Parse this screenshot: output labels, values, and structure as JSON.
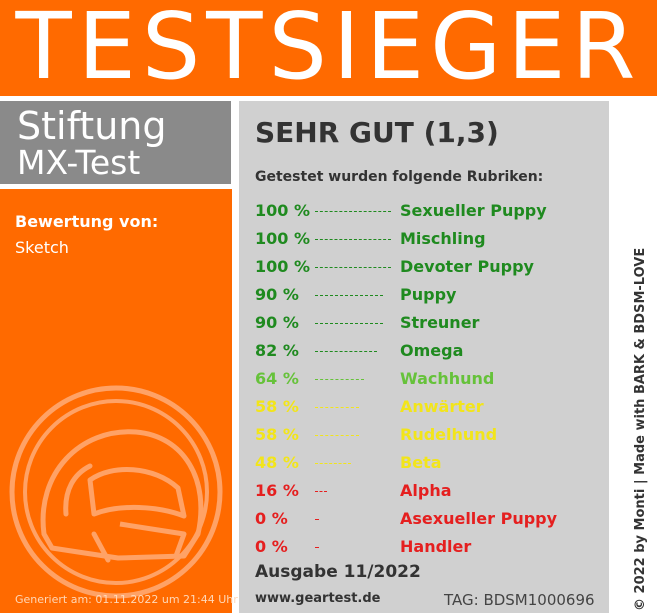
{
  "banner": {
    "title": "TESTSIEGER"
  },
  "brand": {
    "line1": "Stiftung",
    "line2": "MX-Test"
  },
  "rating": {
    "label": "Bewertung von:",
    "value": "Sketch"
  },
  "emblem": {
    "icon": "motocross-helmet-icon"
  },
  "generated": "Generiert am: 01.11.2022 um 21:44 Uhr",
  "verdict": "SEHR GUT (1,3)",
  "tested_heading": "Getestet wurden folgende Rubriken:",
  "results": [
    {
      "percent": "100 %",
      "value": 100,
      "name": "Sexueller Puppy",
      "color": "#1f8a1f"
    },
    {
      "percent": "100 %",
      "value": 100,
      "name": "Mischling",
      "color": "#1f8a1f"
    },
    {
      "percent": "100 %",
      "value": 100,
      "name": "Devoter Puppy",
      "color": "#1f8a1f"
    },
    {
      "percent": "90 %",
      "value": 90,
      "name": "Puppy",
      "color": "#1f8a1f"
    },
    {
      "percent": "90 %",
      "value": 90,
      "name": "Streuner",
      "color": "#1f8a1f"
    },
    {
      "percent": "82 %",
      "value": 82,
      "name": "Omega",
      "color": "#1f8a1f"
    },
    {
      "percent": "64 %",
      "value": 64,
      "name": "Wachhund",
      "color": "#66c23a"
    },
    {
      "percent": "58 %",
      "value": 58,
      "name": "Anwärter",
      "color": "#f2e51a"
    },
    {
      "percent": "58 %",
      "value": 58,
      "name": "Rudelhund",
      "color": "#f2e51a"
    },
    {
      "percent": "48 %",
      "value": 48,
      "name": "Beta",
      "color": "#f2e51a"
    },
    {
      "percent": "16 %",
      "value": 16,
      "name": "Alpha",
      "color": "#e51f1f"
    },
    {
      "percent": "0 %",
      "value": 0,
      "name": "Asexueller Puppy",
      "color": "#e51f1f"
    },
    {
      "percent": "0 %",
      "value": 0,
      "name": "Handler",
      "color": "#e51f1f"
    }
  ],
  "issue": "Ausgabe 11/2022",
  "website": "www.geartest.de",
  "tag": "TAG: BDSM1000696",
  "side_credit": "© 2022 by Monti | Made with BARK & BDSM-LOVE",
  "colors": {
    "orange": "#ff6a00",
    "brand_gray": "#8a8a8a",
    "panel_gray": "#d0d0d0",
    "text_dark": "#333333"
  }
}
